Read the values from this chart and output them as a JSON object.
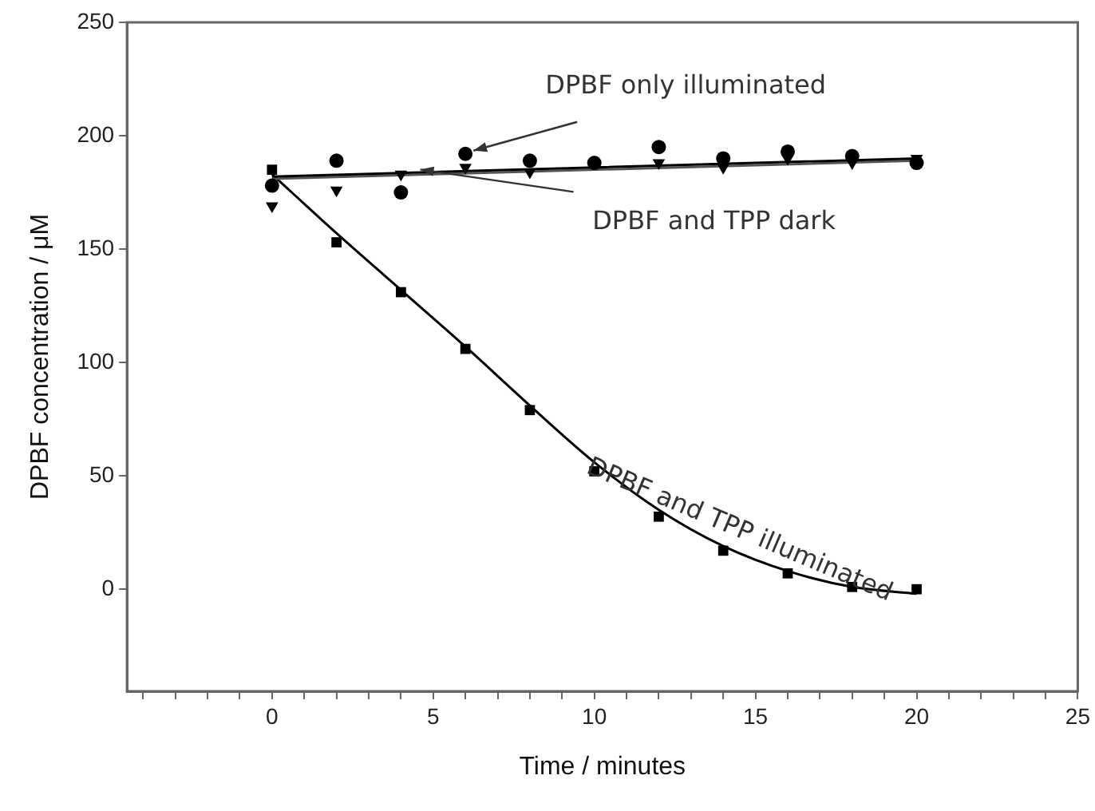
{
  "chart_data": {
    "type": "scatter",
    "xlabel": "Time / minutes",
    "ylabel": "DPBF concentration / μM",
    "x": [
      0,
      2,
      4,
      6,
      8,
      10,
      12,
      14,
      16,
      18,
      20
    ],
    "xlim": [
      -4.5,
      25
    ],
    "xticks": [
      {
        "value": -4,
        "label": null
      },
      {
        "value": -3,
        "label": null
      },
      {
        "value": -2,
        "label": null
      },
      {
        "value": -1,
        "label": null
      },
      0,
      {
        "value": 1,
        "label": null
      },
      {
        "value": 2,
        "label": null
      },
      {
        "value": 3,
        "label": null
      },
      {
        "value": 4,
        "label": null
      },
      5,
      {
        "value": 6,
        "label": null
      },
      {
        "value": 7,
        "label": null
      },
      {
        "value": 8,
        "label": null
      },
      {
        "value": 9,
        "label": null
      },
      10,
      {
        "value": 11,
        "label": null
      },
      {
        "value": 12,
        "label": null
      },
      {
        "value": 13,
        "label": null
      },
      {
        "value": 14,
        "label": null
      },
      15,
      {
        "value": 16,
        "label": null
      },
      {
        "value": 17,
        "label": null
      },
      {
        "value": 18,
        "label": null
      },
      {
        "value": 19,
        "label": null
      },
      20,
      {
        "value": 21,
        "label": null
      },
      {
        "value": 22,
        "label": null
      },
      {
        "value": 23,
        "label": null
      },
      {
        "value": 24,
        "label": null
      },
      25
    ],
    "ylim": [
      -45,
      250
    ],
    "yticks": [
      0,
      50,
      100,
      150,
      200,
      250
    ],
    "grid": false,
    "legend": false,
    "series": [
      {
        "type": "scatter",
        "marker": "circle",
        "color": "#000000",
        "values": [
          178,
          189,
          175,
          192,
          189,
          188,
          195,
          190,
          193,
          191,
          188
        ]
      },
      {
        "type": "scatter",
        "marker": "triangle",
        "color": "#000000",
        "values": [
          169,
          176,
          183,
          186,
          184,
          null,
          188,
          186,
          190,
          188,
          190
        ]
      },
      {
        "type": "scatter",
        "marker": "square",
        "color": "#000000",
        "values": [
          185,
          153,
          131,
          106,
          79,
          52,
          32,
          17,
          7,
          1,
          0
        ]
      },
      {
        "type": "line",
        "marker": "none",
        "line_style": "solid",
        "color": "#000000",
        "x": [
          0,
          20
        ],
        "values": [
          182,
          190
        ]
      },
      {
        "type": "line",
        "marker": "none",
        "line_style": "solid",
        "color": "#555555",
        "x": [
          0,
          20
        ],
        "values": [
          181,
          189
        ]
      },
      {
        "type": "line",
        "marker": "none",
        "line_style": "solid",
        "color": "#000000",
        "x": [
          0,
          2,
          4,
          6,
          8,
          10,
          12,
          14,
          16,
          18,
          20
        ],
        "values": [
          183,
          157,
          132,
          107,
          81,
          56,
          35,
          19,
          8,
          1,
          -2
        ]
      }
    ],
    "annotations": [
      {
        "text": "DPBF only illuminated",
        "x": 6,
        "y": 192
      },
      {
        "text": "DPBF and TPP dark",
        "x": 4.6,
        "y": 183
      },
      {
        "text": "DPBF and TPP illuminated",
        "x": 14.5,
        "y": 16
      }
    ]
  }
}
